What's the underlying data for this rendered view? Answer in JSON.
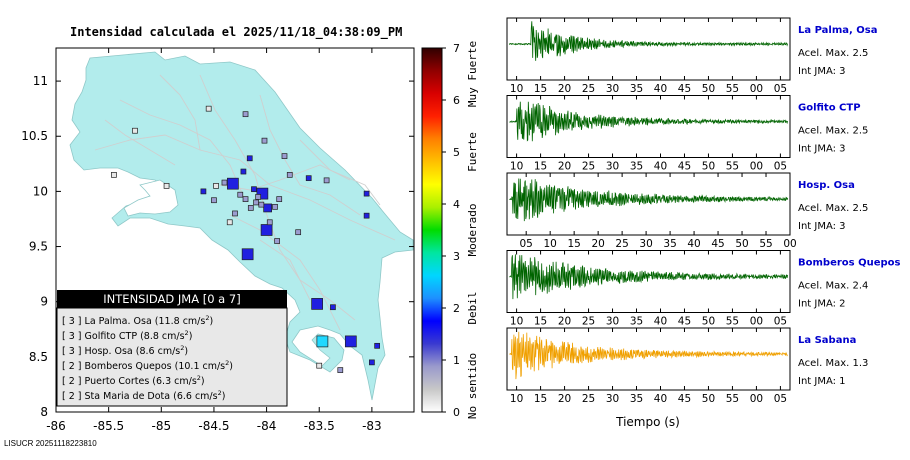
{
  "title": "Intensidad calculada el 2025/11/18_04:38:09_PM",
  "footer_id": "LISUCR 20251118223810",
  "map": {
    "x_ticks": [
      "-86",
      "-85.5",
      "-85",
      "-84.5",
      "-84",
      "-83.5",
      "-83"
    ],
    "x_values": [
      -86,
      -85.5,
      -85,
      -84.5,
      -84,
      -83.5,
      -83
    ],
    "y_ticks": [
      "11",
      "10.5",
      "10",
      "9.5",
      "9",
      "8.5",
      "8"
    ],
    "y_values": [
      11,
      10.5,
      10,
      9.5,
      9,
      8.5,
      8
    ],
    "xlim": [
      -86,
      -82.6
    ],
    "ylim": [
      8,
      11.3
    ],
    "land_color": "#b2ecec",
    "stations": [
      {
        "lon": -84.32,
        "lat": 10.07,
        "jma": 2,
        "size": "l"
      },
      {
        "lon": -84.04,
        "lat": 9.98,
        "jma": 2,
        "size": "l"
      },
      {
        "lon": -84.0,
        "lat": 9.65,
        "jma": 2,
        "size": "l"
      },
      {
        "lon": -84.18,
        "lat": 9.43,
        "jma": 2,
        "size": "l"
      },
      {
        "lon": -83.52,
        "lat": 8.98,
        "jma": 2,
        "size": "l"
      },
      {
        "lon": -83.2,
        "lat": 8.64,
        "jma": 2,
        "size": "l"
      },
      {
        "lon": -83.47,
        "lat": 8.64,
        "jma": 3,
        "size": "l"
      },
      {
        "lon": -83.99,
        "lat": 9.85,
        "jma": 2,
        "size": "m"
      },
      {
        "lon": -84.2,
        "lat": 9.93,
        "jma": 1,
        "size": "s"
      },
      {
        "lon": -84.1,
        "lat": 9.9,
        "jma": 1,
        "size": "s"
      },
      {
        "lon": -84.05,
        "lat": 9.88,
        "jma": 1,
        "size": "s"
      },
      {
        "lon": -84.15,
        "lat": 9.85,
        "jma": 1,
        "size": "s"
      },
      {
        "lon": -84.08,
        "lat": 9.95,
        "jma": 1,
        "size": "s"
      },
      {
        "lon": -84.25,
        "lat": 9.97,
        "jma": 1,
        "size": "s"
      },
      {
        "lon": -83.92,
        "lat": 9.86,
        "jma": 1,
        "size": "s"
      },
      {
        "lon": -83.88,
        "lat": 9.93,
        "jma": 1,
        "size": "s"
      },
      {
        "lon": -84.12,
        "lat": 10.02,
        "jma": 2,
        "size": "s"
      },
      {
        "lon": -84.4,
        "lat": 10.08,
        "jma": 1,
        "size": "s"
      },
      {
        "lon": -84.48,
        "lat": 10.05,
        "jma": 0,
        "size": "s"
      },
      {
        "lon": -84.16,
        "lat": 10.3,
        "jma": 2,
        "size": "s"
      },
      {
        "lon": -83.83,
        "lat": 10.32,
        "jma": 1,
        "size": "s"
      },
      {
        "lon": -83.78,
        "lat": 10.15,
        "jma": 1,
        "size": "s"
      },
      {
        "lon": -84.2,
        "lat": 10.7,
        "jma": 1,
        "size": "s"
      },
      {
        "lon": -84.6,
        "lat": 10.0,
        "jma": 2,
        "size": "s"
      },
      {
        "lon": -84.5,
        "lat": 9.92,
        "jma": 1,
        "size": "s"
      },
      {
        "lon": -84.55,
        "lat": 10.75,
        "jma": 0,
        "size": "s"
      },
      {
        "lon": -84.02,
        "lat": 10.46,
        "jma": 1,
        "size": "s"
      },
      {
        "lon": -83.6,
        "lat": 10.12,
        "jma": 2,
        "size": "s"
      },
      {
        "lon": -83.43,
        "lat": 10.1,
        "jma": 1,
        "size": "s"
      },
      {
        "lon": -83.05,
        "lat": 9.98,
        "jma": 2,
        "size": "s"
      },
      {
        "lon": -83.05,
        "lat": 9.78,
        "jma": 2,
        "size": "s"
      },
      {
        "lon": -85.25,
        "lat": 10.55,
        "jma": 0,
        "size": "s"
      },
      {
        "lon": -85.45,
        "lat": 10.15,
        "jma": 0,
        "size": "s"
      },
      {
        "lon": -84.95,
        "lat": 10.05,
        "jma": 0,
        "size": "s"
      },
      {
        "lon": -83.9,
        "lat": 9.55,
        "jma": 1,
        "size": "s"
      },
      {
        "lon": -83.37,
        "lat": 8.95,
        "jma": 2,
        "size": "s"
      },
      {
        "lon": -82.95,
        "lat": 8.6,
        "jma": 2,
        "size": "s"
      },
      {
        "lon": -83.0,
        "lat": 8.45,
        "jma": 2,
        "size": "s"
      },
      {
        "lon": -83.3,
        "lat": 8.38,
        "jma": 1,
        "size": "s"
      },
      {
        "lon": -83.5,
        "lat": 8.42,
        "jma": 0,
        "size": "s"
      },
      {
        "lon": -83.97,
        "lat": 9.72,
        "jma": 1,
        "size": "s"
      },
      {
        "lon": -84.3,
        "lat": 9.8,
        "jma": 1,
        "size": "s"
      },
      {
        "lon": -84.35,
        "lat": 9.72,
        "jma": 0,
        "size": "s"
      },
      {
        "lon": -84.22,
        "lat": 10.18,
        "jma": 2,
        "size": "s"
      },
      {
        "lon": -83.7,
        "lat": 9.63,
        "jma": 1,
        "size": "s"
      }
    ]
  },
  "legend": {
    "title": "INTENSIDAD JMA [0 a 7]",
    "entries": [
      {
        "jma": "[ 3 ]",
        "label": "La Palma. Osa (11.8 cm/s",
        "unit_sup": "2",
        "close": ")"
      },
      {
        "jma": "[ 3 ]",
        "label": "Golfito CTP (8.8 cm/s",
        "unit_sup": "2",
        "close": ")"
      },
      {
        "jma": "[ 3 ]",
        "label": "Hosp. Osa (8.6 cm/s",
        "unit_sup": "2",
        "close": ")"
      },
      {
        "jma": "[ 2 ]",
        "label": "Bomberos Quepos (10.1 cm/s",
        "unit_sup": "2",
        "close": ")"
      },
      {
        "jma": "[ 2 ]",
        "label": "Puerto Cortes (6.3 cm/s",
        "unit_sup": "2",
        "close": ")"
      },
      {
        "jma": "[ 2 ]",
        "label": "Sta Maria de Dota (6.6 cm/s",
        "unit_sup": "2",
        "close": ")"
      }
    ]
  },
  "colorbar": {
    "ticks": [
      "7",
      "6",
      "5",
      "4",
      "3",
      "2",
      "1",
      "0"
    ],
    "values": [
      7,
      6,
      5,
      4,
      3,
      2,
      1,
      0
    ],
    "range": [
      0,
      7
    ],
    "labels": [
      "Muy Fuerte",
      "Fuerte",
      "Moderado",
      "Debil",
      "No sentido"
    ],
    "colors": [
      "#ffffff",
      "#c8c8c8",
      "#9a9acc",
      "#3a3ad0",
      "#0000ff",
      "#1e90ff",
      "#00d6ff",
      "#00e6a0",
      "#00dc00",
      "#aaf000",
      "#ffff00",
      "#ffc000",
      "#ff8000",
      "#ff2000",
      "#d80000",
      "#900000",
      "#300000"
    ]
  },
  "seismograms": {
    "xlabel": "Tiempo (s)",
    "x_min": 8,
    "x_max": 67,
    "panels": [
      {
        "station": "La Palma, Osa",
        "accel": "Acel. Max. 2.5",
        "int": "Int JMA: 3",
        "color": "#006400",
        "onset": 13,
        "decay": 7.5,
        "amp": 1.0,
        "ticks": [
          "10",
          "15",
          "20",
          "25",
          "30",
          "35",
          "40",
          "45",
          "50",
          "55",
          "00",
          "05"
        ],
        "tick_pos": [
          10,
          15,
          20,
          25,
          30,
          35,
          40,
          45,
          50,
          55,
          60,
          65
        ]
      },
      {
        "station": "Golfito CTP",
        "accel": "Acel. Max. 2.5",
        "int": "Int JMA: 3",
        "color": "#006400",
        "onset": 10,
        "decay": 12,
        "amp": 1.0,
        "ticks": [
          "10",
          "15",
          "20",
          "25",
          "30",
          "35",
          "40",
          "45",
          "50",
          "55",
          "00",
          "05"
        ],
        "tick_pos": [
          10,
          15,
          20,
          25,
          30,
          35,
          40,
          45,
          50,
          55,
          60,
          65
        ]
      },
      {
        "station": "Hosp. Osa",
        "accel": "Acel. Max. 2.5",
        "int": "Int JMA: 3",
        "color": "#006400",
        "onset": 9,
        "decay": 16,
        "amp": 1.0,
        "ticks": [
          "05",
          "10",
          "15",
          "20",
          "25",
          "30",
          "35",
          "40",
          "45",
          "50",
          "55",
          "00"
        ],
        "tick_pos": [
          12,
          17,
          22,
          27,
          32,
          37,
          42,
          47,
          52,
          57,
          62,
          67
        ]
      },
      {
        "station": "Bomberos Quepos",
        "accel": "Acel. Max. 2.4",
        "int": "Int JMA: 2",
        "color": "#006400",
        "onset": 9,
        "decay": 16,
        "amp": 1.0,
        "ticks": [
          "10",
          "15",
          "20",
          "25",
          "30",
          "35",
          "40",
          "45",
          "50",
          "55",
          "00",
          "05"
        ],
        "tick_pos": [
          10,
          15,
          20,
          25,
          30,
          35,
          40,
          45,
          50,
          55,
          60,
          65
        ]
      },
      {
        "station": "La Sabana",
        "accel": "Acel. Max. 1.3",
        "int": "Int JMA: 1",
        "color": "#f0a000",
        "onset": 9,
        "decay": 14,
        "amp": 1.0,
        "ticks": [
          "10",
          "15",
          "20",
          "25",
          "30",
          "35",
          "40",
          "45",
          "50",
          "55",
          "00",
          "05"
        ],
        "tick_pos": [
          10,
          15,
          20,
          25,
          30,
          35,
          40,
          45,
          50,
          55,
          60,
          65
        ]
      }
    ]
  }
}
